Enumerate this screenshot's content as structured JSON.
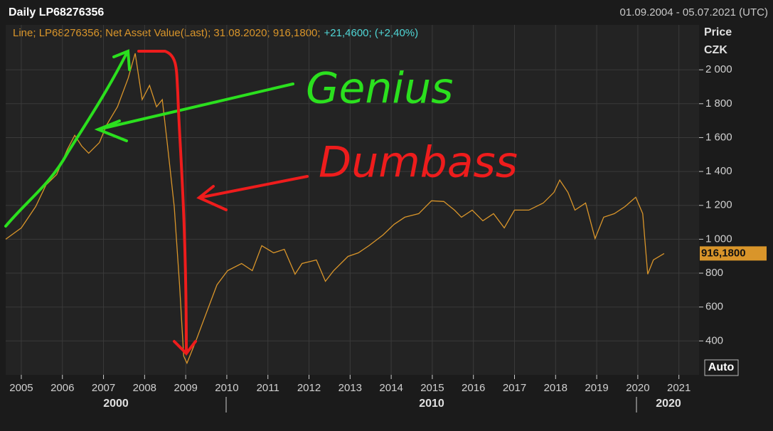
{
  "chart_data": {
    "type": "line",
    "title": "Daily LP68276356",
    "date_range": "01.09.2004 - 05.07.2021 (UTC)",
    "legend_text": "Line; LP68276356; Net Asset Value(Last); 31.08.2020; 916,1800;",
    "change_text": "+21,4600; (+2,40%)",
    "axis_title": "Price",
    "axis_unit": "CZK",
    "last_label": "916,1800",
    "auto_label": "Auto",
    "decades": [
      "2000",
      "2010",
      "2020"
    ],
    "annotations": [
      "Genius",
      "Dumbass"
    ],
    "color": "#d9952a",
    "x": [
      2004.62,
      2005.0,
      2005.35,
      2005.6,
      2005.86,
      2006.12,
      2006.3,
      2006.47,
      2006.64,
      2006.9,
      2007.08,
      2007.34,
      2007.6,
      2007.77,
      2007.94,
      2008.12,
      2008.29,
      2008.43,
      2008.55,
      2008.72,
      2008.85,
      2008.95,
      2009.03,
      2009.24,
      2009.5,
      2009.76,
      2010.02,
      2010.36,
      2010.62,
      2010.85,
      2011.14,
      2011.4,
      2011.66,
      2011.83,
      2012.18,
      2012.4,
      2012.6,
      2012.95,
      2013.2,
      2013.46,
      2013.8,
      2014.07,
      2014.33,
      2014.67,
      2014.98,
      2015.28,
      2015.54,
      2015.71,
      2015.97,
      2016.23,
      2016.49,
      2016.75,
      2017.0,
      2017.35,
      2017.7,
      2017.96,
      2018.1,
      2018.3,
      2018.47,
      2018.73,
      2018.96,
      2019.17,
      2019.43,
      2019.69,
      2019.95,
      2020.12,
      2020.24,
      2020.38,
      2020.64
    ],
    "values": [
      1000,
      1067,
      1193,
      1320,
      1382,
      1530,
      1613,
      1550,
      1508,
      1571,
      1676,
      1782,
      1950,
      2097,
      1824,
      1908,
      1782,
      1824,
      1571,
      1193,
      731,
      311,
      269,
      395,
      563,
      731,
      815,
      857,
      815,
      962,
      920,
      941,
      794,
      857,
      878,
      752,
      815,
      899,
      920,
      962,
      1025,
      1088,
      1130,
      1151,
      1227,
      1223,
      1172,
      1130,
      1172,
      1109,
      1151,
      1067,
      1172,
      1172,
      1214,
      1277,
      1349,
      1277,
      1172,
      1214,
      1004,
      1130,
      1151,
      1193,
      1248,
      1151,
      794,
      878,
      916.18
    ],
    "xlim": [
      2004.62,
      2021.49
    ],
    "xticks": [
      2005,
      2006,
      2007,
      2008,
      2009,
      2010,
      2011,
      2012,
      2013,
      2014,
      2015,
      2016,
      2017,
      2018,
      2019,
      2020,
      2021
    ],
    "ylim": [
      200,
      2265
    ],
    "yticks": [
      400,
      600,
      800,
      {
        "value": 1000,
        "label": "1 000"
      },
      {
        "value": 1200,
        "label": "1 200"
      },
      {
        "value": 1400,
        "label": "1 400"
      },
      {
        "value": 1600,
        "label": "1 600"
      },
      {
        "value": 1800,
        "label": "1 800"
      },
      {
        "value": 2000,
        "label": "2 000"
      }
    ],
    "grid": true
  }
}
